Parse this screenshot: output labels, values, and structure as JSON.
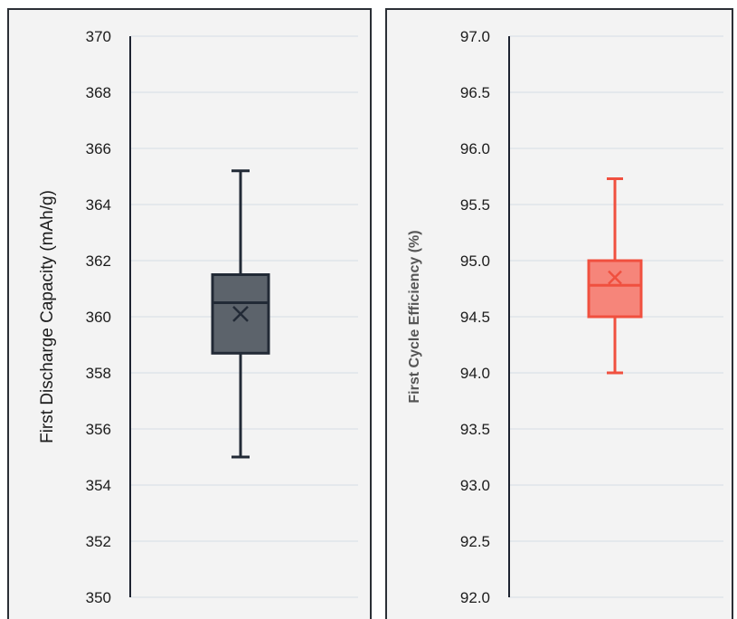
{
  "chart_data": [
    {
      "type": "box",
      "ylabel": "First Discharge Capacity (mAh/g)",
      "ylim": [
        350,
        370
      ],
      "yticks": [
        "350",
        "352",
        "354",
        "356",
        "358",
        "360",
        "362",
        "364",
        "366",
        "368",
        "370"
      ],
      "grid": true,
      "color": "#5c636b",
      "edge_color": "#222a36",
      "box": {
        "min": 355.0,
        "q1": 358.7,
        "median": 360.5,
        "mean": 360.1,
        "q3": 361.5,
        "max": 365.2
      }
    },
    {
      "type": "box",
      "ylabel": "First Cycle Efficiency (%)",
      "ylim": [
        92.0,
        97.0
      ],
      "yticks": [
        "92.0",
        "92.5",
        "93.0",
        "93.5",
        "94.0",
        "94.5",
        "95.0",
        "95.5",
        "96.0",
        "96.5",
        "97.0"
      ],
      "grid": true,
      "color": "#f6857a",
      "edge_color": "#f0503f",
      "box": {
        "min": 94.0,
        "q1": 94.5,
        "median": 94.78,
        "mean": 94.85,
        "q3": 95.0,
        "max": 95.73
      }
    }
  ]
}
